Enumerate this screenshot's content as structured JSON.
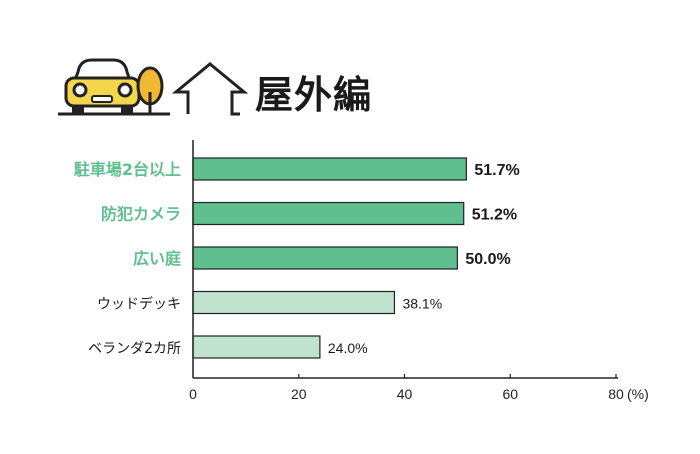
{
  "header": {
    "title": "屋外編"
  },
  "icons": [
    "car-icon",
    "tree-icon",
    "house-outline-icon"
  ],
  "colors": {
    "highlight_bar": "#5fbf8f",
    "highlight_label": "#5fbf8f",
    "normal_bar": "#bfe3cf",
    "normal_label": "#1a1a1a",
    "car_body": "#f2d64b",
    "tree": "#f2b733"
  },
  "chart_data": {
    "type": "bar",
    "orientation": "horizontal",
    "categories": [
      "駐車場2台以上",
      "防犯カメラ",
      "広い庭",
      "ウッドデッキ",
      "ベランダ2カ所"
    ],
    "values": [
      51.7,
      51.2,
      50.0,
      38.1,
      24.0
    ],
    "value_labels": [
      "51.7%",
      "51.2%",
      "50.0%",
      "38.1%",
      "24.0%"
    ],
    "highlighted": [
      true,
      true,
      true,
      false,
      false
    ],
    "xlim": [
      0,
      80
    ],
    "xticks": [
      0,
      20,
      40,
      60,
      80
    ],
    "tick_labels": [
      "0",
      "20",
      "40",
      "60",
      "80"
    ],
    "unit_label": "(%)",
    "grid": false
  }
}
